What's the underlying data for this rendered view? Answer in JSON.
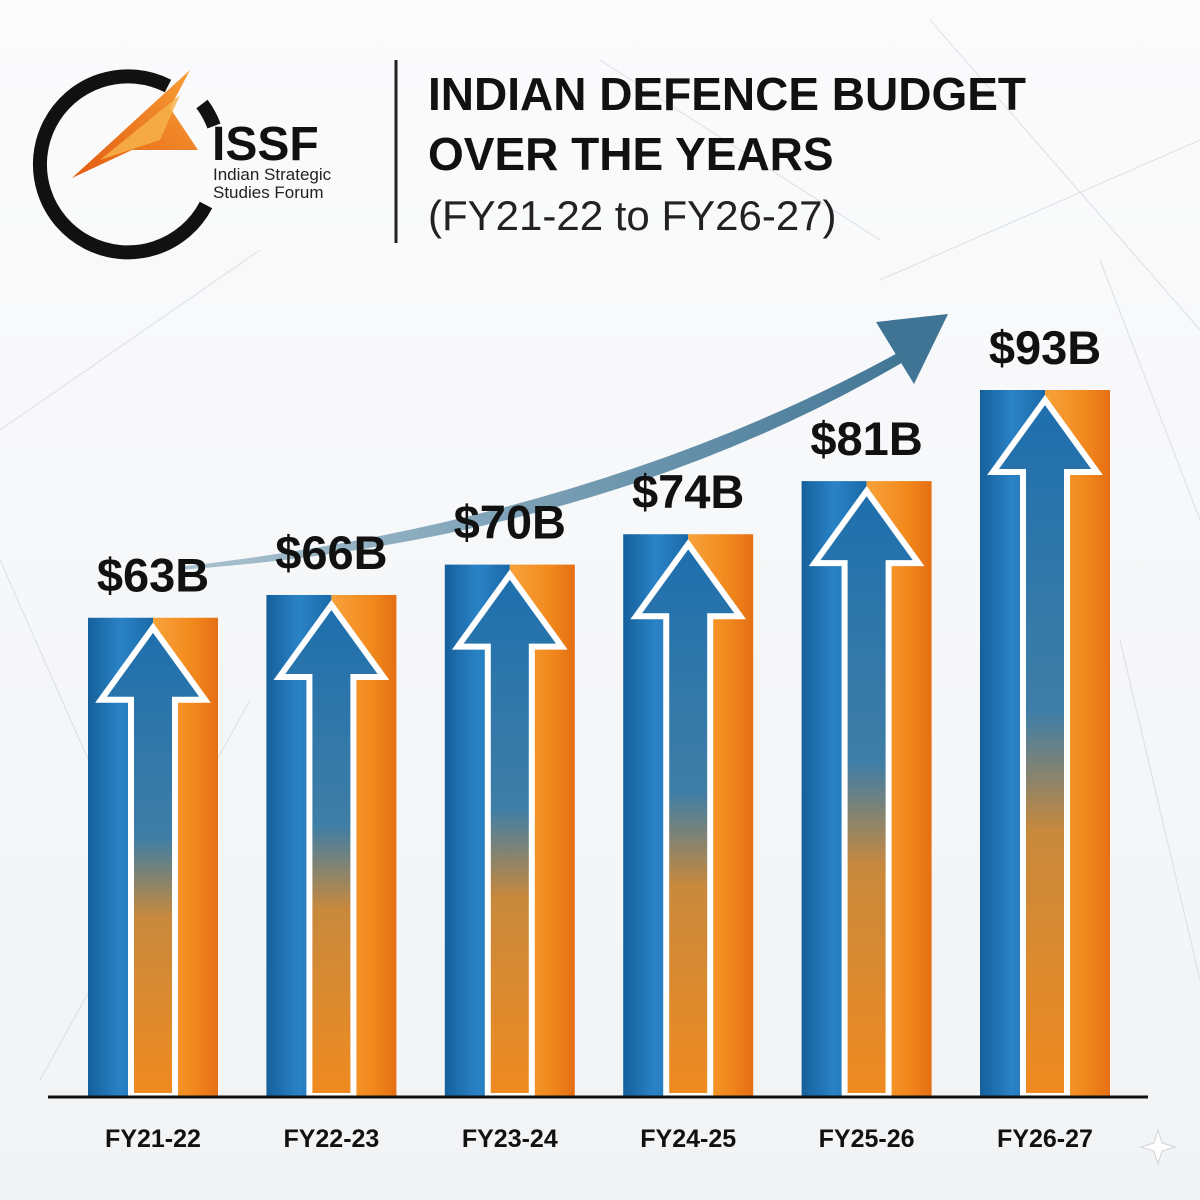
{
  "header": {
    "logo_acronym": "ISSF",
    "logo_line1": "Indian Strategic",
    "logo_line2": "Studies Forum",
    "title_line1": "INDIAN DEFENCE BUDGET",
    "title_line2": "OVER THE YEARS",
    "subtitle": "(FY21-22 to FY26-27)"
  },
  "colors": {
    "blue": "#1a6fb0",
    "orange": "#f28a1e",
    "trend_arrow": "#4d7d97",
    "text": "#111111"
  },
  "icons": [
    "issf-logo-icon",
    "trend-arrow-icon",
    "up-arrow-icon"
  ],
  "chart_data": {
    "type": "bar",
    "title": "INDIAN DEFENCE BUDGET OVER THE YEARS",
    "subtitle": "(FY21-22 to FY26-27)",
    "xlabel": "",
    "ylabel": "",
    "unit": "$B",
    "categories": [
      "FY21-22",
      "FY22-23",
      "FY23-24",
      "FY24-25",
      "FY25-26",
      "FY26-27"
    ],
    "values": [
      63,
      66,
      70,
      74,
      81,
      93
    ],
    "labels": [
      "$63B",
      "$66B",
      "$70B",
      "$74B",
      "$81B",
      "$93B"
    ],
    "ylim": [
      0,
      105
    ],
    "grid": false,
    "legend": "none"
  }
}
